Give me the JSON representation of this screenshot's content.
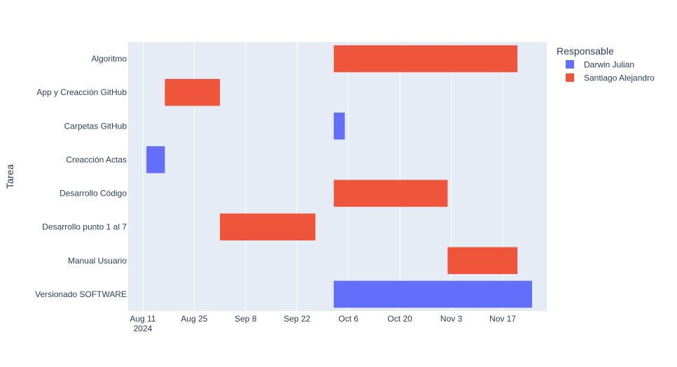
{
  "chart_data": {
    "type": "gantt",
    "ylabel": "Tarea",
    "xlabel": "",
    "legend": {
      "title": "Responsable",
      "placement": "top-right",
      "entries": [
        {
          "name": "Darwin Julian",
          "color": "#636efa"
        },
        {
          "name": "Santiago Alejandro",
          "color": "#ef553b"
        }
      ]
    },
    "categories": [
      "Algoritmo",
      "App y Creacción GitHub",
      "Carpetas GitHub",
      "Creacción Actas",
      "Desarrollo Código",
      "Desarrollo punto 1 al 7",
      "Manual Usuario",
      "Versionado SOFTWARE"
    ],
    "xlim": [
      "2024-08-07",
      "2024-11-29"
    ],
    "x_ticks": [
      {
        "date": "2024-08-11",
        "label": "Aug 11",
        "sublabel": "2024"
      },
      {
        "date": "2024-08-25",
        "label": "Aug 25"
      },
      {
        "date": "2024-09-08",
        "label": "Sep 8"
      },
      {
        "date": "2024-09-22",
        "label": "Sep 22"
      },
      {
        "date": "2024-10-06",
        "label": "Oct 6"
      },
      {
        "date": "2024-10-20",
        "label": "Oct 20"
      },
      {
        "date": "2024-11-03",
        "label": "Nov 3"
      },
      {
        "date": "2024-11-17",
        "label": "Nov 17"
      }
    ],
    "grid": true,
    "tasks": [
      {
        "task": "Algoritmo",
        "start": "2024-10-02",
        "end": "2024-11-21",
        "responsable": "Santiago Alejandro"
      },
      {
        "task": "App y Creacción GitHub",
        "start": "2024-08-17",
        "end": "2024-09-01",
        "responsable": "Santiago Alejandro"
      },
      {
        "task": "Carpetas GitHub",
        "start": "2024-10-02",
        "end": "2024-10-05",
        "responsable": "Darwin Julian"
      },
      {
        "task": "Creacción Actas",
        "start": "2024-08-12",
        "end": "2024-08-17",
        "responsable": "Darwin Julian"
      },
      {
        "task": "Desarrollo Código",
        "start": "2024-10-02",
        "end": "2024-11-02",
        "responsable": "Santiago Alejandro"
      },
      {
        "task": "Desarrollo punto 1 al 7",
        "start": "2024-09-01",
        "end": "2024-09-27",
        "responsable": "Santiago Alejandro"
      },
      {
        "task": "Manual Usuario",
        "start": "2024-11-02",
        "end": "2024-11-21",
        "responsable": "Santiago Alejandro"
      },
      {
        "task": "Versionado SOFTWARE",
        "start": "2024-10-02",
        "end": "2024-11-25",
        "responsable": "Darwin Julian"
      }
    ]
  }
}
